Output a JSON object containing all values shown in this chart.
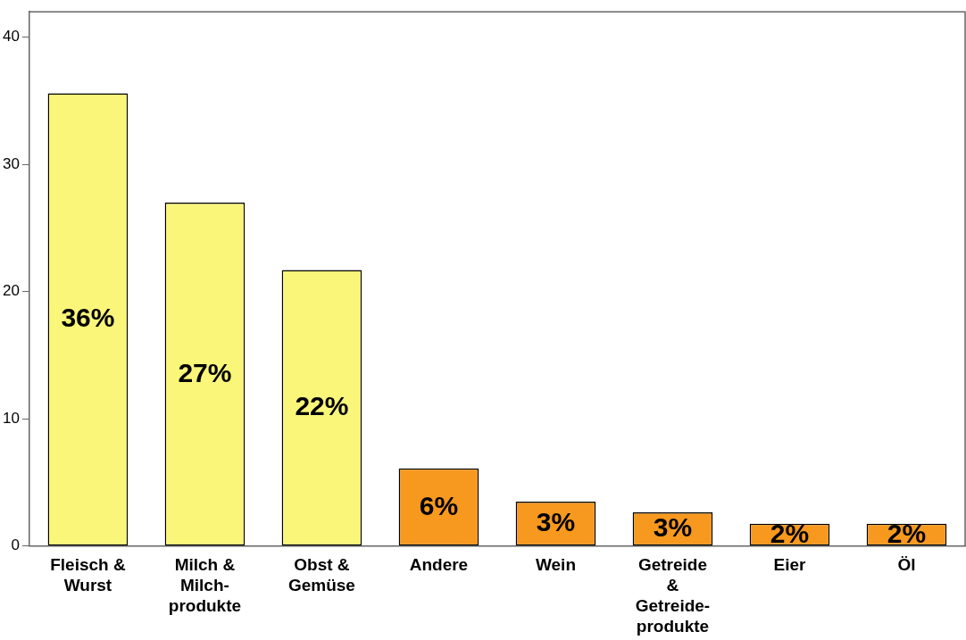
{
  "chart_data": {
    "type": "bar",
    "categories": [
      "Fleisch &\nWurst",
      "Milch &\nMilch-\nprodukte",
      "Obst &\nGemüse",
      "Andere",
      "Wein",
      "Getreide\n&\nGetreide-\nprodukte",
      "Eier",
      "Öl"
    ],
    "values": [
      35.6,
      27.0,
      21.7,
      6.1,
      3.5,
      2.65,
      1.76,
      1.76
    ],
    "value_labels": [
      "36%",
      "27%",
      "22%",
      "6%",
      "3%",
      "3%",
      "2%",
      "2%"
    ],
    "colors": [
      "#faf67a",
      "#faf67a",
      "#faf67a",
      "#f7991e",
      "#f7991e",
      "#f7991e",
      "#f7991e",
      "#f7991e"
    ],
    "ylim": [
      0,
      42
    ],
    "yticks": [
      0,
      10,
      20,
      30,
      40
    ],
    "grid": false,
    "legend": false
  }
}
